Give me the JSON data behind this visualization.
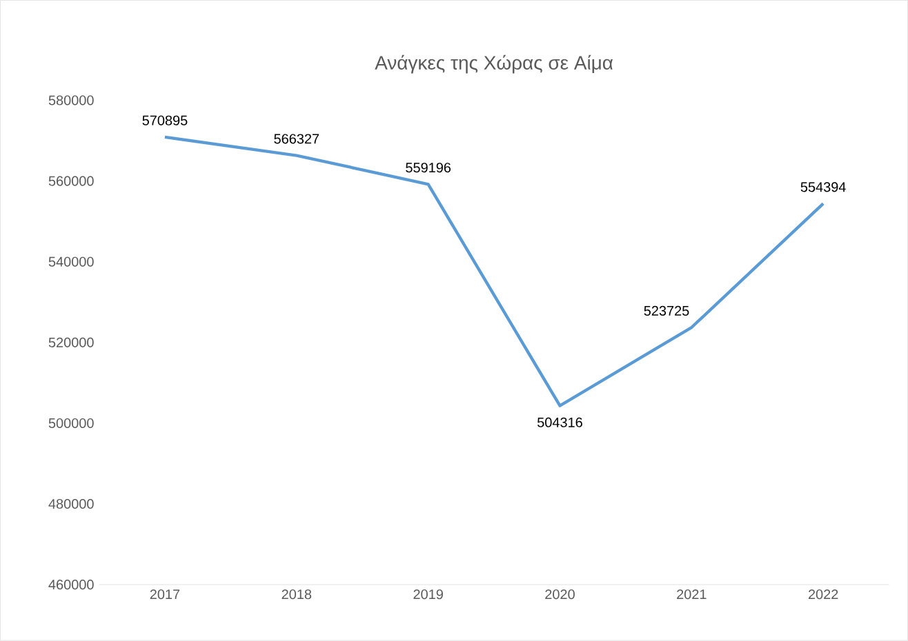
{
  "chart_data": {
    "type": "line",
    "title": "Ανάγκες της Χώρας σε Αίμα",
    "categories": [
      "2017",
      "2018",
      "2019",
      "2020",
      "2021",
      "2022"
    ],
    "series": [
      {
        "color": "#5b9bd5",
        "values": [
          570895,
          566327,
          559196,
          504316,
          523725,
          554394
        ]
      }
    ],
    "ylim": [
      460000,
      580000
    ],
    "yticks": [
      460000,
      480000,
      500000,
      520000,
      540000,
      560000,
      580000
    ],
    "data_labels": true,
    "grid": false,
    "marker": "none",
    "line_style": "solid"
  }
}
